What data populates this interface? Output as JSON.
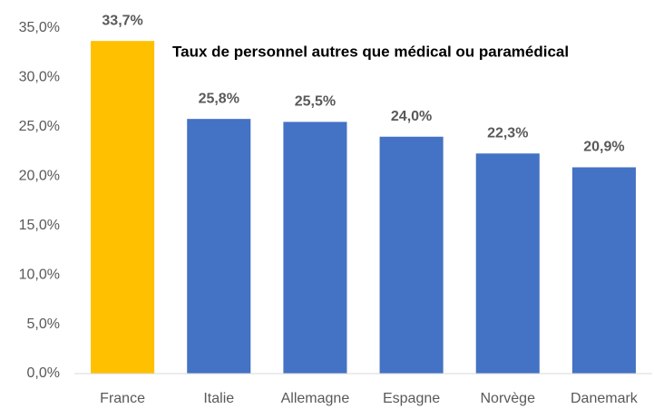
{
  "chart_data": {
    "type": "bar",
    "title": "Taux de personnel autres que médical ou paramédical",
    "categories": [
      "France",
      "Italie",
      "Allemagne",
      "Espagne",
      "Norvège",
      "Danemark"
    ],
    "values": [
      33.7,
      25.8,
      25.5,
      24.0,
      22.3,
      20.9
    ],
    "value_labels": [
      "33,7%",
      "25,8%",
      "25,5%",
      "24,0%",
      "22,3%",
      "20,9%"
    ],
    "colors": [
      "#ffc000",
      "#4472c4",
      "#4472c4",
      "#4472c4",
      "#4472c4",
      "#4472c4"
    ],
    "ylim": [
      0,
      35
    ],
    "yticks": [
      {
        "value": 0,
        "label": "0,0%"
      },
      {
        "value": 5,
        "label": "5,0%"
      },
      {
        "value": 10,
        "label": "10,0%"
      },
      {
        "value": 15,
        "label": "15,0%"
      },
      {
        "value": 20,
        "label": "20,0%"
      },
      {
        "value": 25,
        "label": "25,0%"
      },
      {
        "value": 30,
        "label": "30,0%"
      },
      {
        "value": 35,
        "label": "35,0%"
      }
    ],
    "grid": false
  }
}
